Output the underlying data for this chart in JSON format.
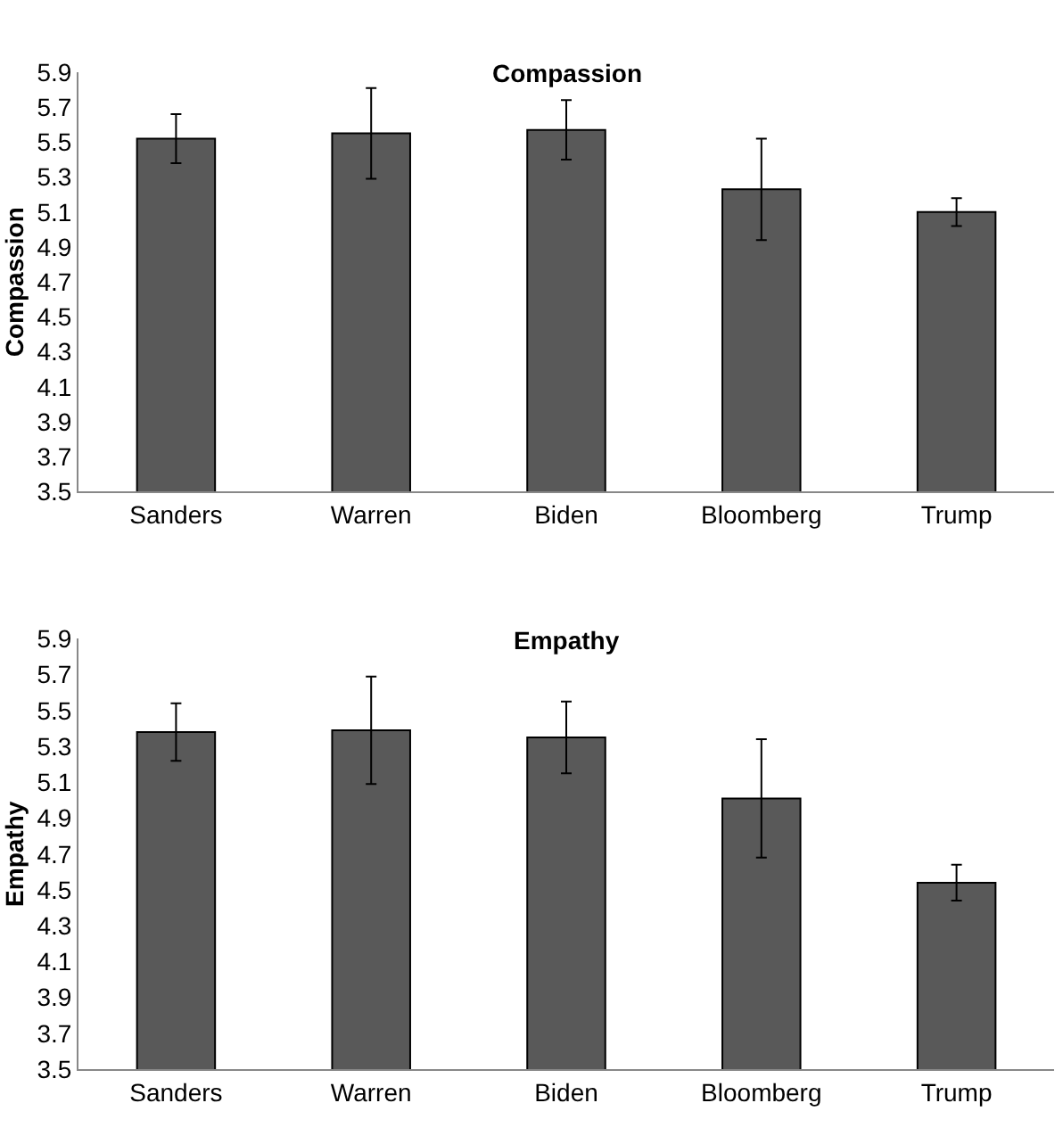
{
  "chart_data": [
    {
      "type": "bar",
      "title": "Compassion",
      "ylabel": "Compassion",
      "categories": [
        "Sanders",
        "Warren",
        "Biden",
        "Bloomberg",
        "Trump"
      ],
      "series": [
        {
          "color": "#595959",
          "values": [
            5.52,
            5.55,
            5.57,
            5.23,
            5.1
          ],
          "errors": [
            0.14,
            0.26,
            0.17,
            0.29,
            0.08
          ]
        }
      ],
      "ylim": [
        3.5,
        5.9
      ],
      "yticks": [
        3.5,
        3.7,
        3.9,
        4.1,
        4.3,
        4.5,
        4.7,
        4.9,
        5.1,
        5.3,
        5.5,
        5.7,
        5.9
      ]
    },
    {
      "type": "bar",
      "title": "Empathy",
      "ylabel": "Empathy",
      "categories": [
        "Sanders",
        "Warren",
        "Biden",
        "Bloomberg",
        "Trump"
      ],
      "series": [
        {
          "color": "#595959",
          "values": [
            5.38,
            5.39,
            5.35,
            5.01,
            4.54
          ],
          "errors": [
            0.16,
            0.3,
            0.2,
            0.33,
            0.1
          ]
        }
      ],
      "ylim": [
        3.5,
        5.9
      ],
      "yticks": [
        3.5,
        3.7,
        3.9,
        4.1,
        4.3,
        4.5,
        4.7,
        4.9,
        5.1,
        5.3,
        5.5,
        5.7,
        5.9
      ]
    }
  ]
}
